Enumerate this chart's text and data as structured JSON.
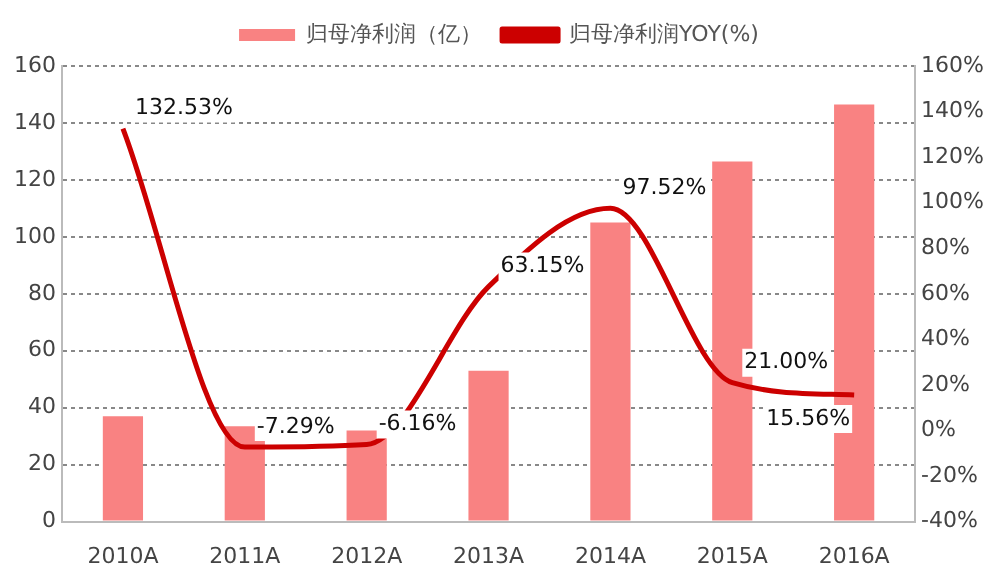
{
  "chart_data": {
    "type": "bar",
    "categories": [
      "2010A",
      "2011A",
      "2012A",
      "2013A",
      "2014A",
      "2015A",
      "2016A"
    ],
    "series": [
      {
        "name": "归母净利润（亿）",
        "color": "#f98282",
        "values": [
          37,
          33.5,
          32,
          53,
          105,
          126.5,
          146.5
        ]
      },
      {
        "name": "归母净利润YOY(%)",
        "type": "line",
        "axis": "y2",
        "color": "#cc0000",
        "marker": "none",
        "values": [
          132.53,
          -7.29,
          -6.16,
          63.15,
          97.52,
          21.0,
          15.56
        ],
        "value_labels": [
          "132.53%",
          "-7.29%",
          "-6.16%",
          "63.15%",
          "97.52%",
          "21.00%",
          "15.56%"
        ]
      }
    ],
    "ylim": [
      0,
      160
    ],
    "yticks": [
      0,
      20,
      40,
      60,
      80,
      100,
      120,
      140,
      160
    ],
    "y2lim": [
      -40,
      160
    ],
    "y2ticks": [
      {
        "value": -40,
        "label": "-40%"
      },
      {
        "value": -20,
        "label": "-20%"
      },
      {
        "value": 0,
        "label": "0%"
      },
      {
        "value": 20,
        "label": "20%"
      },
      {
        "value": 40,
        "label": "40%"
      },
      {
        "value": 60,
        "label": "60%"
      },
      {
        "value": 80,
        "label": "80%"
      },
      {
        "value": 100,
        "label": "100%"
      },
      {
        "value": 120,
        "label": "120%"
      },
      {
        "value": 140,
        "label": "140%"
      },
      {
        "value": 160,
        "label": "160%"
      }
    ],
    "grid": "y",
    "legend": "top"
  }
}
